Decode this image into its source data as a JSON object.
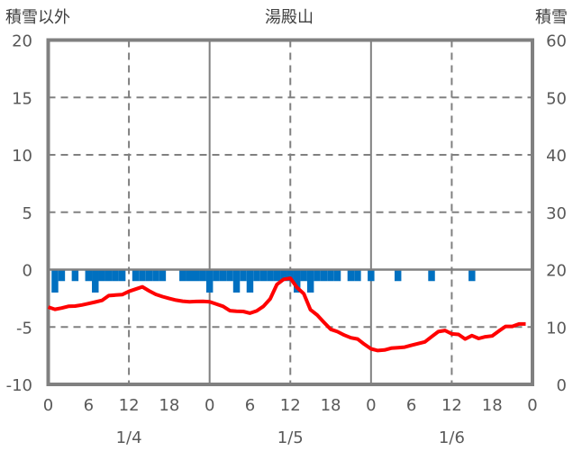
{
  "chart_data": {
    "type": "bar+line",
    "title": "湯殿山",
    "ylabel_left": "積雪以外",
    "ylabel_right": "積雪",
    "ylim_left": [
      -10,
      20
    ],
    "ylim_right": [
      0,
      60
    ],
    "yticks_left": [
      "20",
      "15",
      "10",
      "5",
      "0",
      "-5",
      "-10"
    ],
    "yticks_right": [
      "60",
      "50",
      "40",
      "30",
      "20",
      "10",
      "0"
    ],
    "xlim_hours": [
      0,
      72
    ],
    "xticks": [
      "0",
      "6",
      "12",
      "18",
      "0",
      "6",
      "12",
      "18",
      "0",
      "6",
      "12",
      "18",
      "0"
    ],
    "date_labels": [
      "1/4",
      "1/5",
      "1/6"
    ],
    "grid": true,
    "colors": {
      "bars": "#0070C0",
      "line": "#FF0000",
      "axis": "#808080"
    },
    "series": [
      {
        "name": "bars",
        "type": "bar",
        "hours": [
          1,
          2,
          4,
          6,
          7,
          8,
          9,
          10,
          11,
          13,
          14,
          15,
          16,
          17,
          20,
          21,
          22,
          23,
          24,
          25,
          26,
          27,
          28,
          29,
          30,
          31,
          32,
          33,
          34,
          35,
          36,
          37,
          38,
          39,
          40,
          41,
          42,
          43,
          45,
          46,
          48,
          52,
          57,
          63
        ],
        "values": [
          -2,
          -1,
          -1,
          -1,
          -2,
          -1,
          -1,
          -1,
          -1,
          -1,
          -1,
          -1,
          -1,
          -1,
          -1,
          -1,
          -1,
          -1,
          -2,
          -1,
          -1,
          -1,
          -2,
          -1,
          -2,
          -1,
          -1,
          -1,
          -1,
          -1,
          -1,
          -2,
          -1,
          -2,
          -1,
          -1,
          -1,
          -1,
          -1,
          -1,
          -1,
          -1,
          -1,
          -1
        ]
      },
      {
        "name": "line",
        "type": "line",
        "values": [
          -3.26,
          -3.46,
          -3.35,
          -3.2,
          -3.18,
          -3.08,
          -2.96,
          -2.82,
          -2.68,
          -2.27,
          -2.22,
          -2.18,
          -1.9,
          -1.7,
          -1.5,
          -1.85,
          -2.16,
          -2.35,
          -2.52,
          -2.66,
          -2.75,
          -2.8,
          -2.78,
          -2.76,
          -2.8,
          -3.0,
          -3.2,
          -3.58,
          -3.62,
          -3.65,
          -3.8,
          -3.6,
          -3.2,
          -2.55,
          -1.3,
          -0.85,
          -0.75,
          -1.56,
          -2.1,
          -3.5,
          -3.96,
          -4.6,
          -5.2,
          -5.4,
          -5.7,
          -5.94,
          -6.05,
          -6.5,
          -6.9,
          -7.05,
          -7.0,
          -6.85,
          -6.8,
          -6.75,
          -6.6,
          -6.45,
          -6.3,
          -5.85,
          -5.4,
          -5.3,
          -5.6,
          -5.65,
          -6.05,
          -5.75,
          -6.0,
          -5.85,
          -5.78,
          -5.35,
          -4.95,
          -4.95,
          -4.74,
          -4.74
        ]
      }
    ]
  }
}
